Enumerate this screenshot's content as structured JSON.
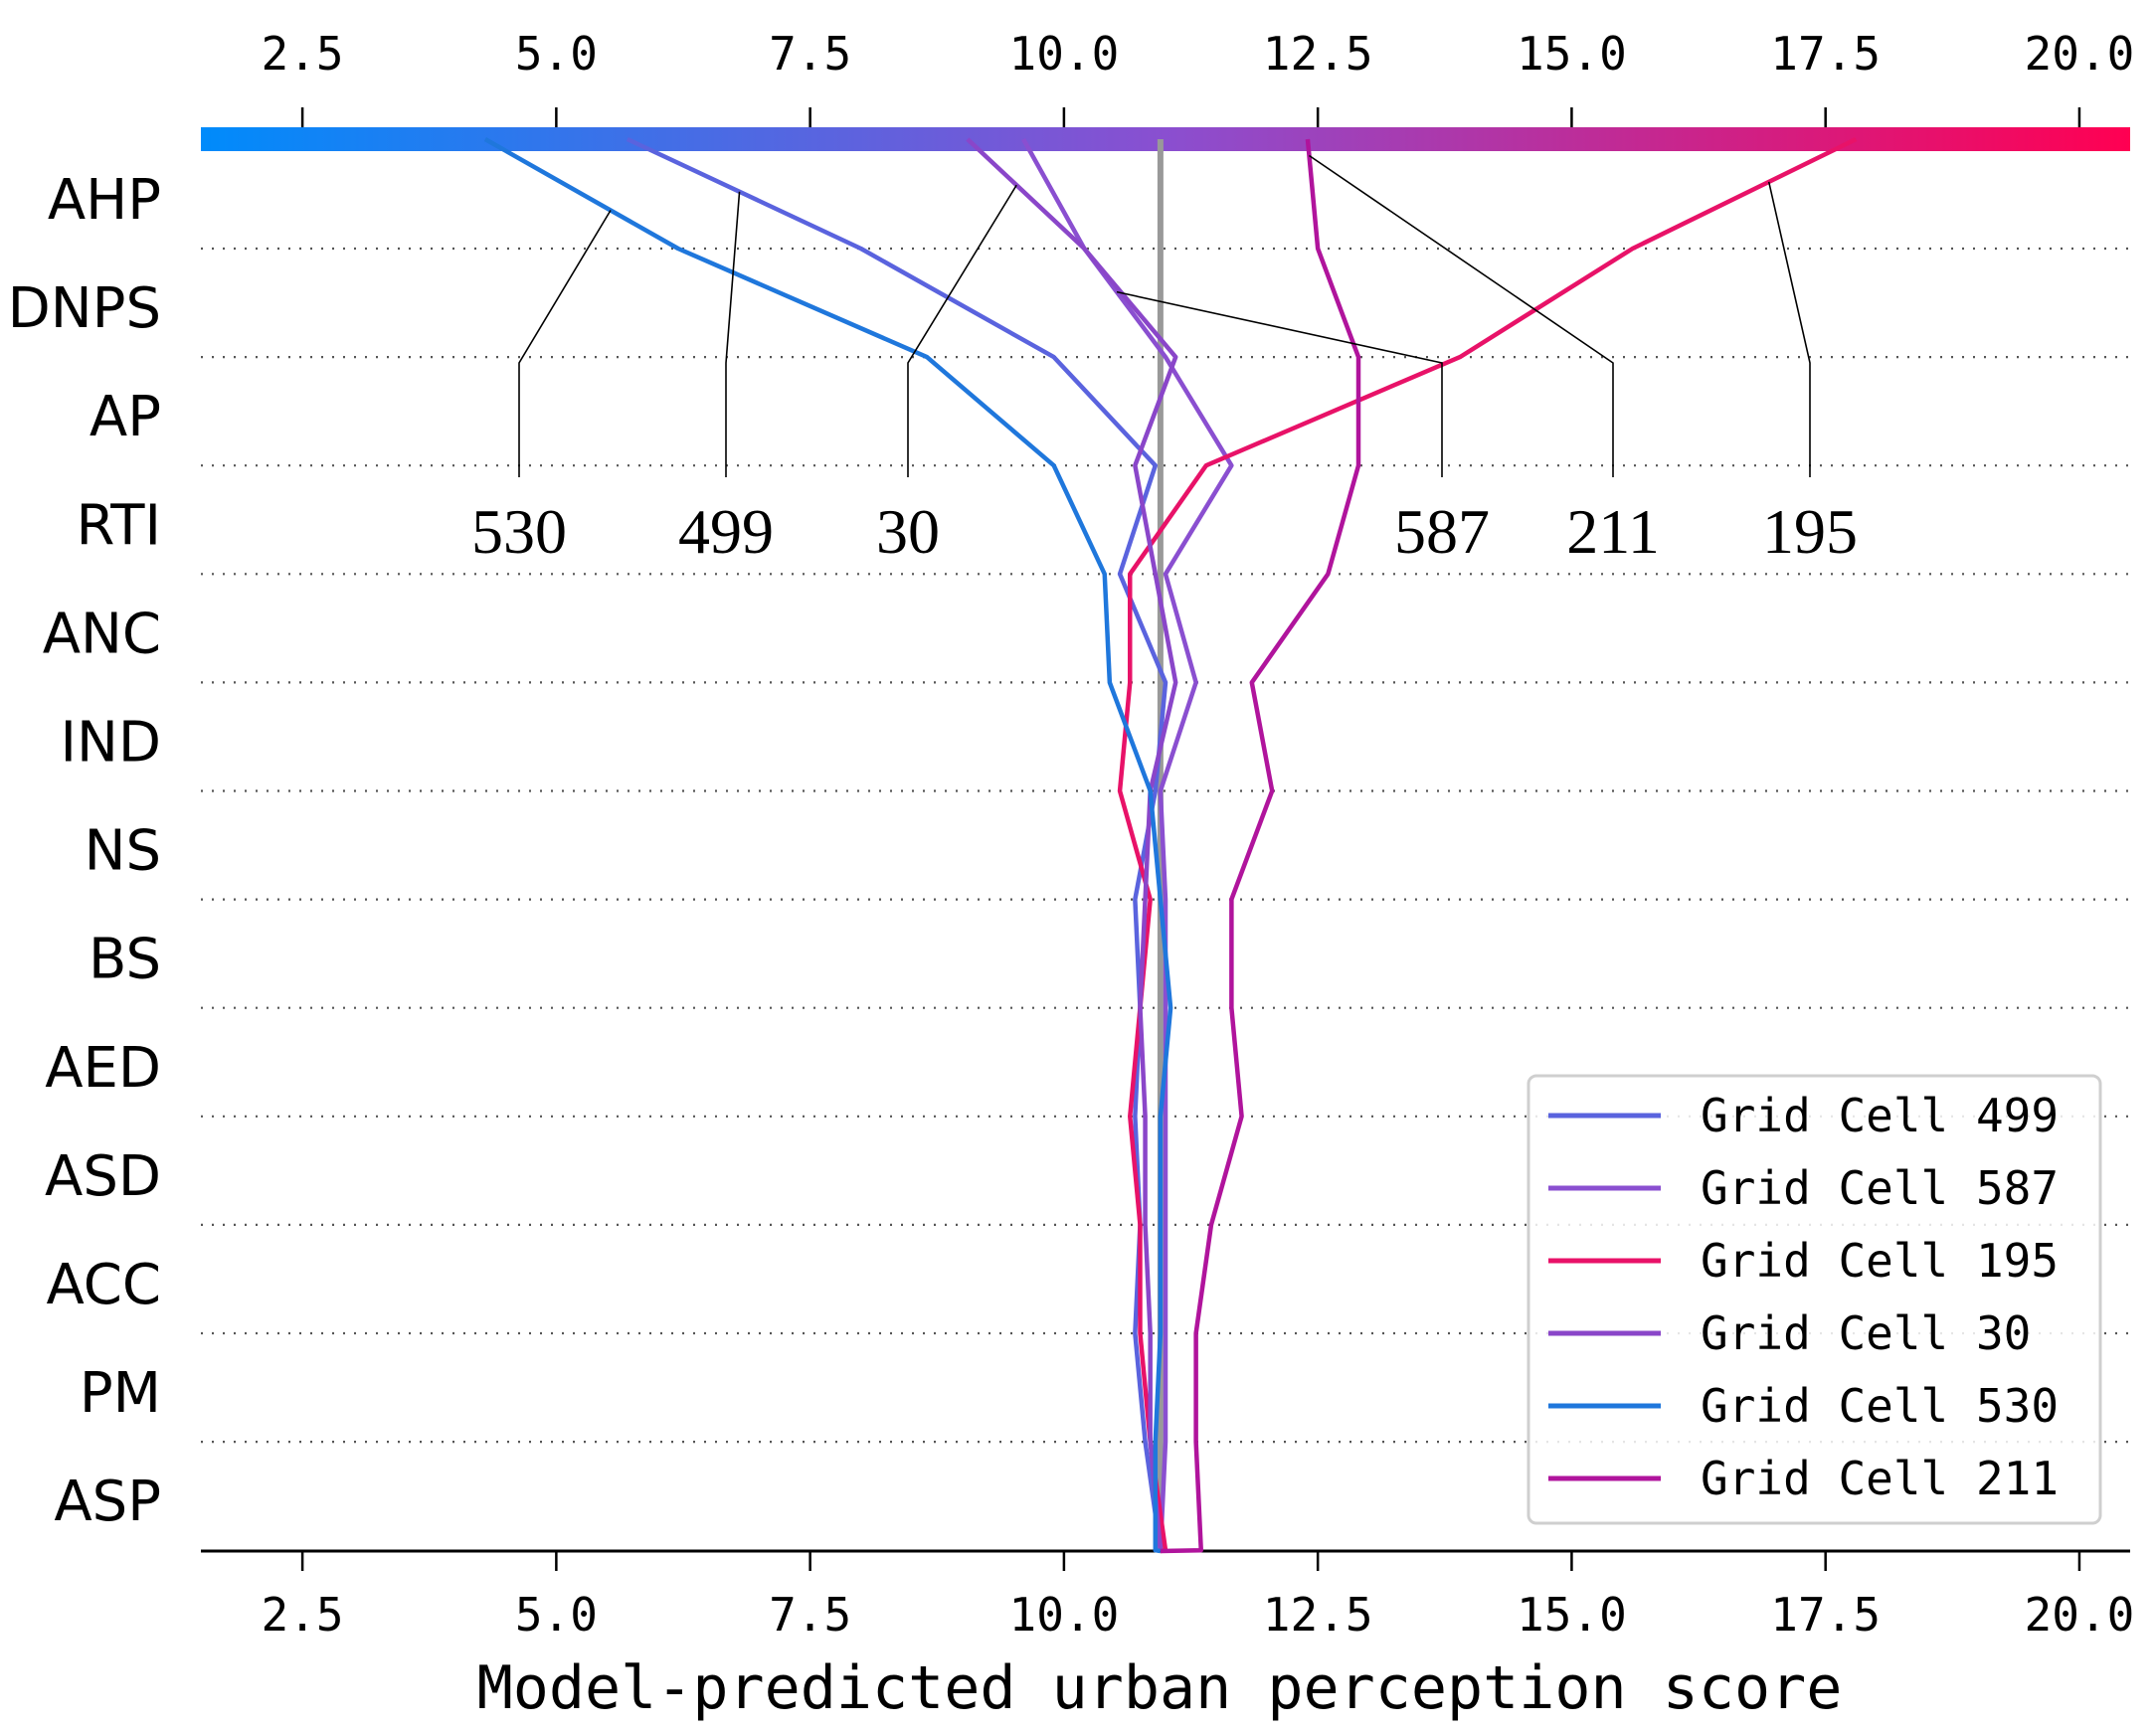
{
  "chart_data": {
    "type": "line",
    "subtype": "shap-decision-plot",
    "xlabel": "Model-predicted urban perception score",
    "xlim": [
      1.5,
      20.5
    ],
    "xticks": [
      "2.5",
      "5.0",
      "7.5",
      "10.0",
      "12.5",
      "15.0",
      "17.5",
      "20.0"
    ],
    "xtick_values": [
      2.5,
      5.0,
      7.5,
      10.0,
      12.5,
      15.0,
      17.5,
      20.0
    ],
    "base_value": 10.95,
    "colorbar": {
      "from": "#008bfb",
      "mid": "#8a4fd0",
      "to": "#ff0052"
    },
    "features": [
      "AHP",
      "DNPS",
      "AP",
      "RTI",
      "ANC",
      "IND",
      "NS",
      "BS",
      "AED",
      "ASD",
      "ACC",
      "PM",
      "ASP"
    ],
    "series": [
      {
        "name": "Grid Cell 499",
        "color": "#5a63de",
        "values": [
          10.95,
          10.95,
          10.8,
          10.7,
          10.75,
          10.7,
          10.75,
          10.7,
          10.9,
          11.0,
          10.55,
          10.9,
          9.9,
          8.0,
          5.7
        ]
      },
      {
        "name": "Grid Cell 587",
        "color": "#8a4fd0",
        "values": [
          10.95,
          10.95,
          11.0,
          11.0,
          11.0,
          11.0,
          11.0,
          11.0,
          10.95,
          11.3,
          11.0,
          11.65,
          11.0,
          10.2,
          9.6
        ]
      },
      {
        "name": "Grid Cell 195",
        "color": "#e81268",
        "values": [
          10.95,
          11.0,
          10.85,
          10.75,
          10.75,
          10.65,
          10.75,
          10.85,
          10.55,
          10.65,
          10.65,
          11.4,
          13.9,
          15.6,
          17.8
        ]
      },
      {
        "name": "Grid Cell 30",
        "color": "#8a46c9",
        "values": [
          10.95,
          10.95,
          10.85,
          10.85,
          10.8,
          10.8,
          10.75,
          10.8,
          10.85,
          11.1,
          10.9,
          10.7,
          11.1,
          10.2,
          9.05
        ]
      },
      {
        "name": "Grid Cell 530",
        "color": "#1f77dc",
        "values": [
          10.95,
          10.9,
          10.9,
          10.95,
          10.95,
          10.95,
          11.05,
          10.95,
          10.85,
          10.45,
          10.4,
          9.9,
          8.65,
          6.2,
          4.3
        ]
      },
      {
        "name": "Grid Cell 211",
        "color": "#b0149c",
        "values": [
          10.95,
          11.35,
          11.3,
          11.3,
          11.45,
          11.75,
          11.65,
          11.65,
          12.05,
          11.85,
          12.6,
          12.9,
          12.9,
          12.5,
          12.4
        ]
      }
    ],
    "annotations": [
      {
        "label": "530",
        "series": "Grid Cell 530"
      },
      {
        "label": "499",
        "series": "Grid Cell 499"
      },
      {
        "label": "30",
        "series": "Grid Cell 30"
      },
      {
        "label": "587",
        "series": "Grid Cell 587"
      },
      {
        "label": "211",
        "series": "Grid Cell 211"
      },
      {
        "label": "195",
        "series": "Grid Cell 195"
      }
    ],
    "legend": {
      "position": "bottom-right",
      "entries": [
        "Grid Cell 499",
        "Grid Cell 587",
        "Grid Cell 195",
        "Grid Cell 30",
        "Grid Cell 530",
        "Grid Cell 211"
      ]
    }
  }
}
